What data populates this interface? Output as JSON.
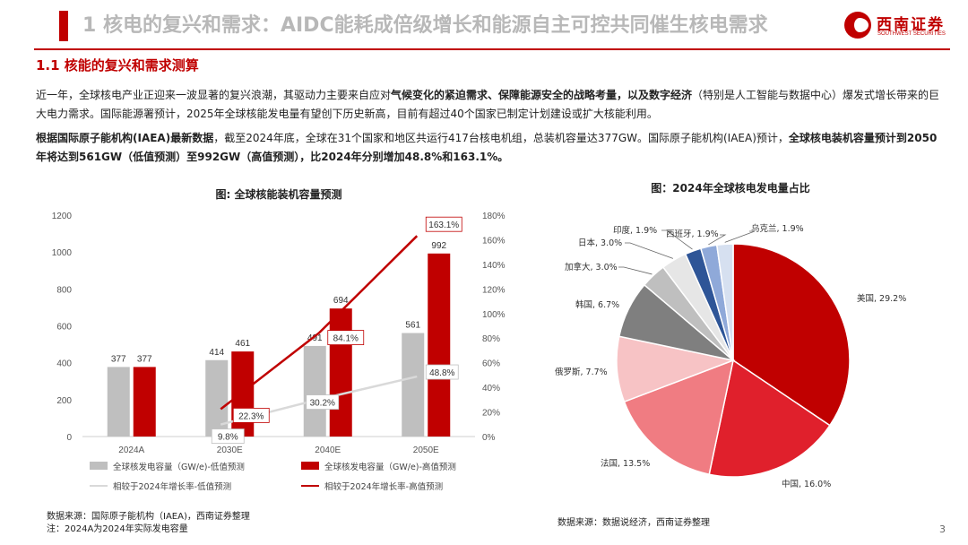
{
  "header": {
    "title": "1 核电的复兴和需求：AIDC能耗成倍级增长和能源自主可控共同催生核电需求",
    "logo_cn": "西南证券",
    "logo_en": "SOUTHWEST SECURITIES"
  },
  "section": {
    "title": "1.1 核能的复兴和需求测算"
  },
  "paragraph1": {
    "t1": "近一年，全球核电产业正迎来一波显著的复兴浪潮，其驱动力主要来自应对",
    "b1": "气候变化的紧迫需求、保障能源安全的战略考量，以及数字经济",
    "t2": "（特别是人工智能与数据中心）爆发式增长带来的巨大电力需求。国际能源署预计，2025年全球核能发电量有望创下历史新高，目前有超过40个国家已制定计划建设或扩大核能利用。"
  },
  "paragraph2": {
    "b1": "根据国际原子能机构(IAEA)最新数据",
    "t1": "，截至2024年底，全球在31个国家和地区共运行417台核电机组，总装机容量达377GW。国际原子能机构(IAEA)预计，",
    "b2": "全球核电装机容量预计到2050年将达到561GW（低值预测）至992GW（高值预测），比2024年分别增加48.8%和163.1%。"
  },
  "chart_data": [
    {
      "type": "bar",
      "title": "图: 全球核能装机容量预测",
      "categories": [
        "2024A",
        "2030E",
        "2040E",
        "2050E"
      ],
      "ylim": [
        0,
        1200
      ],
      "yticks": [
        0,
        200,
        400,
        600,
        800,
        1000,
        1200
      ],
      "y2lim": [
        0,
        180
      ],
      "y2ticks": [
        "0%",
        "20%",
        "40%",
        "60%",
        "80%",
        "100%",
        "120%",
        "140%",
        "160%",
        "180%"
      ],
      "series": [
        {
          "name": "全球核发电容量（GW/e)-低值预测",
          "kind": "bar",
          "color": "#bfbfbf",
          "values": [
            377,
            414,
            491,
            561
          ],
          "labels": [
            "377",
            "414",
            "491",
            "561"
          ]
        },
        {
          "name": "全球核发电容量（GW/e)-高值预测",
          "kind": "bar",
          "color": "#c00000",
          "values": [
            377,
            461,
            694,
            992
          ],
          "labels": [
            "377",
            "461",
            "694",
            "992"
          ]
        },
        {
          "name": "相较于2024年增长率-低值预测",
          "kind": "line",
          "axis": "right",
          "color": "#d9d9d9",
          "x": [
            "2030E",
            "2040E",
            "2050E"
          ],
          "values": [
            9.8,
            30.2,
            48.8
          ],
          "labels": [
            "9.8%",
            "30.2%",
            "48.8%"
          ]
        },
        {
          "name": "相较于2024年增长率-高值预测",
          "kind": "line",
          "axis": "right",
          "color": "#c00000",
          "x": [
            "2030E",
            "2040E",
            "2050E"
          ],
          "values": [
            22.3,
            84.1,
            163.1
          ],
          "labels": [
            "22.3%",
            "84.1%",
            "163.1%"
          ]
        }
      ],
      "legend_position": "bottom",
      "grid": false
    },
    {
      "type": "pie",
      "title": "图：2024年全球核电发电量占比",
      "slices": [
        {
          "label": "美国, 29.2%",
          "value": 29.2,
          "color": "#c00000"
        },
        {
          "label": "中国, 16.0%",
          "value": 16.0,
          "color": "#e0202c"
        },
        {
          "label": "法国, 13.5%",
          "value": 13.5,
          "color": "#f07c82"
        },
        {
          "label": "俄罗斯, 7.7%",
          "value": 7.7,
          "color": "#f7c3c5"
        },
        {
          "label": "韩国, 6.7%",
          "value": 6.7,
          "color": "#7f7f7f"
        },
        {
          "label": "加拿大, 3.0%",
          "value": 3.0,
          "color": "#bfbfbf"
        },
        {
          "label": "日本, 3.0%",
          "value": 3.0,
          "color": "#e6e6e6"
        },
        {
          "label": "印度, 1.9%",
          "value": 1.9,
          "color": "#2e5597"
        },
        {
          "label": "西班牙, 1.9%",
          "value": 1.9,
          "color": "#8fa9d9"
        },
        {
          "label": "乌克兰, 1.9%",
          "value": 1.9,
          "color": "#d6e0f0"
        }
      ]
    }
  ],
  "sources": {
    "left_1": "数据来源：国际原子能机构（IAEA)，西南证券整理",
    "left_2": "注：2024A为2024年实际发电容量",
    "right": "数据来源：数据说经济，西南证券整理"
  },
  "page_number": "3"
}
